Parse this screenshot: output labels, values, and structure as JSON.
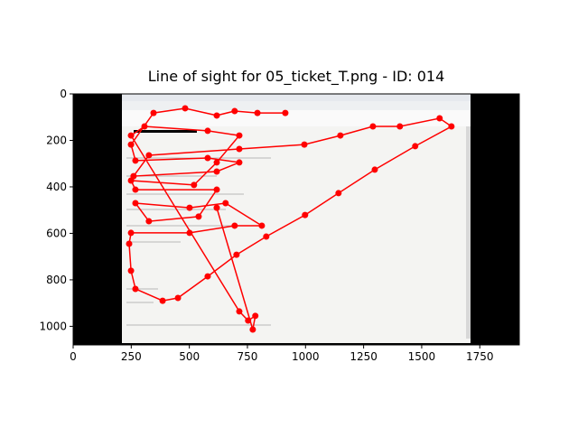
{
  "chart_data": {
    "type": "line",
    "title": "Line of sight for 05_ticket_T.png - ID: 014",
    "x": [
      913,
      793,
      695,
      618,
      482,
      346,
      249,
      268,
      579,
      715,
      618,
      260,
      326,
      715,
      995,
      1150,
      1290,
      1406,
      1577,
      1628,
      1472,
      1298,
      1142,
      998,
      831,
      703,
      579,
      451,
      385,
      268,
      249,
      241,
      249,
      501,
      695,
      812,
      656,
      501,
      268,
      326,
      540,
      618,
      268,
      249,
      520,
      618,
      715,
      579,
      307,
      249,
      715,
      753,
      784,
      773,
      618
    ],
    "values": [
      82,
      82,
      74,
      93,
      62,
      82,
      218,
      287,
      276,
      295,
      334,
      354,
      264,
      237,
      218,
      179,
      140,
      140,
      105,
      140,
      225,
      326,
      427,
      521,
      614,
      692,
      785,
      878,
      890,
      839,
      761,
      645,
      598,
      598,
      567,
      567,
      470,
      490,
      470,
      548,
      528,
      412,
      412,
      373,
      392,
      295,
      179,
      159,
      140,
      179,
      936,
      975,
      955,
      1014,
      490
    ],
    "color": "#ff0000",
    "xlim": [
      0,
      1920
    ],
    "ylim": [
      1080,
      0
    ],
    "xticks": [
      0,
      250,
      500,
      750,
      1000,
      1250,
      1500,
      1750
    ],
    "yticks": [
      0,
      200,
      400,
      600,
      800,
      1000
    ]
  }
}
